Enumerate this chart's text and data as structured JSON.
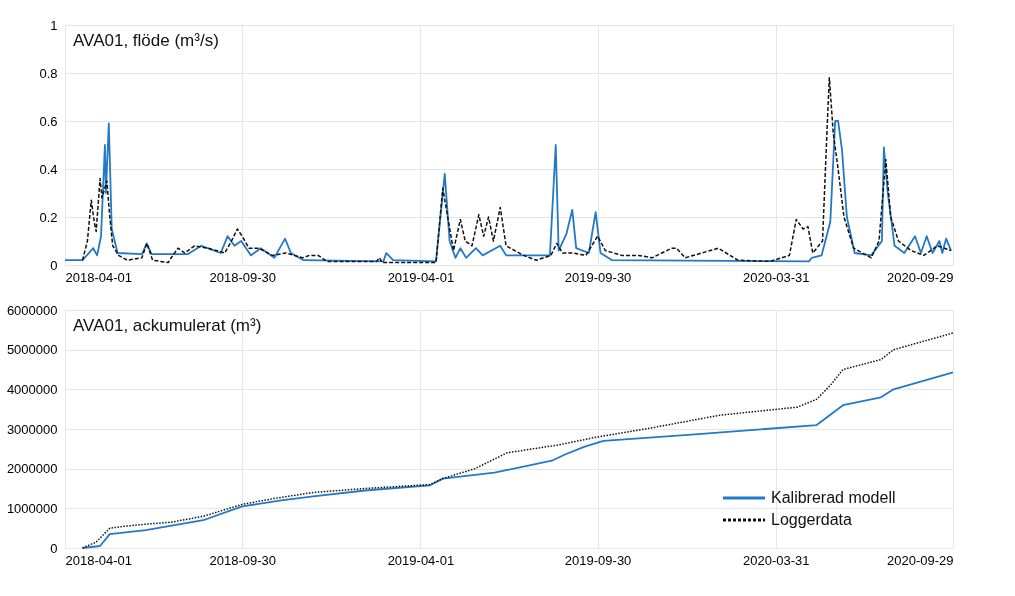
{
  "chart_data": [
    {
      "type": "line",
      "title": "AVA01, flöde (m³/s)",
      "xlim": [
        "2018-04-01",
        "2020-09-29"
      ],
      "xticks": [
        "2018-04-01",
        "2018-09-30",
        "2019-04-01",
        "2019-09-30",
        "2020-03-31",
        "2020-09-29"
      ],
      "ylim": [
        0,
        1
      ],
      "yticks": [
        0,
        0.2,
        0.4,
        0.6,
        0.8,
        1
      ],
      "grid": true,
      "legend": false,
      "series": [
        {
          "color": "#2379c6",
          "line_style": "solid",
          "x": [
            "2018-04-01",
            "2018-04-19",
            "2018-04-30",
            "2018-05-04",
            "2018-05-08",
            "2018-05-12",
            "2018-05-13",
            "2018-05-16",
            "2018-05-19",
            "2018-05-25",
            "2018-06-19",
            "2018-06-24",
            "2018-06-29",
            "2018-08-05",
            "2018-08-19",
            "2018-09-08",
            "2018-09-15",
            "2018-09-22",
            "2018-09-29",
            "2018-10-09",
            "2018-10-19",
            "2018-11-02",
            "2018-11-13",
            "2018-11-19",
            "2018-12-02",
            "2019-02-22",
            "2019-02-25",
            "2019-03-04",
            "2019-04-17",
            "2019-04-26",
            "2019-05-01",
            "2019-05-07",
            "2019-05-12",
            "2019-05-18",
            "2019-05-28",
            "2019-06-04",
            "2019-06-22",
            "2019-06-28",
            "2019-08-12",
            "2019-08-18",
            "2019-08-21",
            "2019-08-29",
            "2019-09-04",
            "2019-09-08",
            "2019-09-21",
            "2019-09-28",
            "2019-10-03",
            "2019-10-15",
            "2020-05-04",
            "2020-05-07",
            "2020-05-17",
            "2020-05-26",
            "2020-05-31",
            "2020-06-03",
            "2020-06-07",
            "2020-06-12",
            "2020-06-20",
            "2020-07-07",
            "2020-07-18",
            "2020-07-20",
            "2020-07-24",
            "2020-07-31",
            "2020-08-10",
            "2020-08-21",
            "2020-08-27",
            "2020-09-02",
            "2020-09-08",
            "2020-09-15",
            "2020-09-18",
            "2020-09-22",
            "2020-09-27"
          ],
          "values": [
            0.02,
            0.02,
            0.07,
            0.04,
            0.12,
            0.5,
            0.3,
            0.59,
            0.15,
            0.05,
            0.045,
            0.09,
            0.045,
            0.045,
            0.08,
            0.05,
            0.12,
            0.08,
            0.1,
            0.04,
            0.07,
            0.03,
            0.11,
            0.05,
            0.02,
            0.015,
            0.05,
            0.02,
            0.015,
            0.38,
            0.1,
            0.03,
            0.07,
            0.03,
            0.07,
            0.04,
            0.08,
            0.04,
            0.04,
            0.5,
            0.06,
            0.13,
            0.23,
            0.07,
            0.05,
            0.22,
            0.05,
            0.02,
            0.015,
            0.03,
            0.04,
            0.18,
            0.6,
            0.6,
            0.48,
            0.2,
            0.05,
            0.04,
            0.1,
            0.49,
            0.3,
            0.08,
            0.05,
            0.12,
            0.05,
            0.12,
            0.05,
            0.1,
            0.05,
            0.11,
            0.06
          ]
        },
        {
          "color": "#111111",
          "line_style": "dashed",
          "x": [
            "2018-04-19",
            "2018-04-24",
            "2018-04-28",
            "2018-05-01",
            "2018-05-03",
            "2018-05-07",
            "2018-05-09",
            "2018-05-14",
            "2018-05-17",
            "2018-05-20",
            "2018-05-26",
            "2018-06-04",
            "2018-06-19",
            "2018-06-24",
            "2018-06-30",
            "2018-07-16",
            "2018-07-19",
            "2018-07-26",
            "2018-08-02",
            "2018-08-12",
            "2018-08-26",
            "2018-09-12",
            "2018-09-19",
            "2018-09-25",
            "2018-09-30",
            "2018-10-07",
            "2018-10-17",
            "2018-10-31",
            "2018-11-14",
            "2018-12-01",
            "2018-12-08",
            "2018-12-17",
            "2018-12-26",
            "2019-02-15",
            "2019-02-18",
            "2019-02-21",
            "2019-04-17",
            "2019-04-24",
            "2019-04-29",
            "2019-05-05",
            "2019-05-12",
            "2019-05-17",
            "2019-05-24",
            "2019-05-31",
            "2019-06-05",
            "2019-06-10",
            "2019-06-15",
            "2019-06-22",
            "2019-06-28",
            "2019-07-07",
            "2019-07-16",
            "2019-07-29",
            "2019-08-13",
            "2019-08-19",
            "2019-08-25",
            "2019-09-04",
            "2019-09-18",
            "2019-09-30",
            "2019-10-08",
            "2019-10-25",
            "2019-11-11",
            "2019-11-25",
            "2019-12-15",
            "2019-12-20",
            "2019-12-29",
            "2020-01-15",
            "2020-02-01",
            "2020-02-09",
            "2020-02-21",
            "2020-03-25",
            "2020-04-14",
            "2020-04-21",
            "2020-04-28",
            "2020-05-03",
            "2020-05-08",
            "2020-05-18",
            "2020-05-23",
            "2020-05-25",
            "2020-05-29",
            "2020-06-03",
            "2020-06-09",
            "2020-06-19",
            "2020-07-07",
            "2020-07-15",
            "2020-07-22",
            "2020-07-27",
            "2020-08-04",
            "2020-08-17",
            "2020-08-30",
            "2020-09-13",
            "2020-09-27"
          ],
          "values": [
            0.02,
            0.1,
            0.27,
            0.18,
            0.14,
            0.36,
            0.28,
            0.35,
            0.2,
            0.08,
            0.04,
            0.02,
            0.03,
            0.09,
            0.02,
            0.01,
            0.03,
            0.07,
            0.05,
            0.08,
            0.07,
            0.05,
            0.1,
            0.15,
            0.12,
            0.07,
            0.07,
            0.04,
            0.05,
            0.03,
            0.04,
            0.04,
            0.015,
            0.015,
            0.03,
            0.01,
            0.01,
            0.32,
            0.2,
            0.06,
            0.19,
            0.1,
            0.08,
            0.21,
            0.12,
            0.2,
            0.1,
            0.24,
            0.08,
            0.06,
            0.04,
            0.02,
            0.04,
            0.09,
            0.05,
            0.05,
            0.04,
            0.12,
            0.06,
            0.04,
            0.04,
            0.03,
            0.07,
            0.07,
            0.03,
            0.05,
            0.07,
            0.05,
            0.02,
            0.015,
            0.04,
            0.19,
            0.15,
            0.16,
            0.05,
            0.1,
            0.6,
            0.78,
            0.55,
            0.4,
            0.2,
            0.07,
            0.03,
            0.1,
            0.44,
            0.2,
            0.1,
            0.06,
            0.04,
            0.08,
            0.06
          ]
        }
      ]
    },
    {
      "type": "line",
      "title": "AVA01, ackumulerat (m³)",
      "xlim": [
        "2018-04-01",
        "2020-09-29"
      ],
      "xticks": [
        "2018-04-01",
        "2018-09-30",
        "2019-04-01",
        "2019-09-30",
        "2020-03-31",
        "2020-09-29"
      ],
      "ylim": [
        0,
        6000000
      ],
      "yticks": [
        0,
        1000000,
        2000000,
        3000000,
        4000000,
        5000000,
        6000000
      ],
      "grid": true,
      "legend": "bottom right",
      "series": [
        {
          "name": "Kalibrerad modell",
          "color": "#2379c6",
          "line_style": "solid",
          "x": [
            "2018-04-19",
            "2018-05-07",
            "2018-05-17",
            "2018-06-23",
            "2018-08-21",
            "2018-09-30",
            "2018-11-09",
            "2018-12-12",
            "2019-02-03",
            "2019-04-11",
            "2019-04-24",
            "2019-06-16",
            "2019-08-14",
            "2019-08-27",
            "2019-09-16",
            "2019-10-06",
            "2020-01-01",
            "2020-05-12",
            "2020-06-08",
            "2020-07-17",
            "2020-07-30",
            "2020-09-29"
          ],
          "values": [
            0,
            50000,
            350000,
            450000,
            700000,
            1050000,
            1200000,
            1300000,
            1450000,
            1580000,
            1750000,
            1900000,
            2200000,
            2350000,
            2550000,
            2700000,
            2850000,
            3100000,
            3600000,
            3800000,
            4000000,
            4430000
          ]
        },
        {
          "name": "Loggerdata",
          "color": "#111111",
          "line_style": "dotted",
          "x": [
            "2018-04-19",
            "2018-05-03",
            "2018-05-17",
            "2018-06-02",
            "2018-06-23",
            "2018-07-19",
            "2018-08-21",
            "2018-09-30",
            "2018-11-02",
            "2018-12-12",
            "2019-02-03",
            "2019-04-11",
            "2019-04-24",
            "2019-05-27",
            "2019-06-29",
            "2019-08-21",
            "2019-09-30",
            "2019-11-29",
            "2020-02-03",
            "2020-04-22",
            "2020-05-12",
            "2020-05-26",
            "2020-06-08",
            "2020-07-17",
            "2020-07-30",
            "2020-09-29"
          ],
          "values": [
            0,
            150000,
            500000,
            550000,
            600000,
            650000,
            800000,
            1100000,
            1250000,
            1400000,
            1500000,
            1600000,
            1750000,
            2000000,
            2400000,
            2600000,
            2800000,
            3050000,
            3350000,
            3550000,
            3750000,
            4100000,
            4500000,
            4750000,
            5000000,
            5420000
          ]
        }
      ]
    }
  ]
}
